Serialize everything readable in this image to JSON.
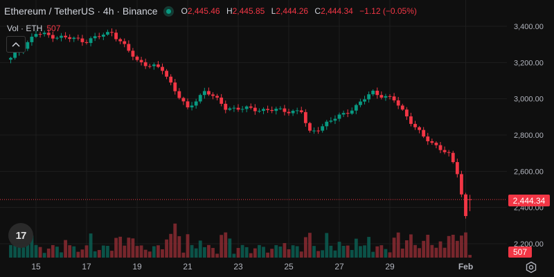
{
  "header": {
    "symbol": "Ethereum / TetherUS · 4h · Binance",
    "open_label": "O",
    "open": "2,445.46",
    "high_label": "H",
    "high": "2,445.85",
    "low_label": "L",
    "low": "2,444.26",
    "close_label": "C",
    "close": "2,444.34",
    "change": "−1.12 (−0.05%)"
  },
  "volume_legend": {
    "label": "Vol · ETH",
    "value": "507"
  },
  "badges": {
    "last_price": "2,444.34",
    "last_volume": "507"
  },
  "logo": {
    "text": "17",
    "icon": "tradingview-logo-icon"
  },
  "colors": {
    "up": "#089981",
    "down": "#f23645",
    "background": "#0f0f0f",
    "grid": "#1e1e1e",
    "text": "#b2b5be"
  },
  "chart_data": {
    "type": "candlestick",
    "symbol": "ETH/USDT",
    "interval": "4h",
    "ylim": [
      2150,
      3450
    ],
    "y_ticks": [
      2200,
      2400,
      2600,
      2800,
      3000,
      3200,
      3400
    ],
    "y_tick_labels": [
      "2,200.00",
      "2,400.00",
      "2,600.00",
      "2,800.00",
      "3,000.00",
      "3,200.00",
      "3,400.00"
    ],
    "x_tick_labels": [
      "15",
      "17",
      "19",
      "21",
      "23",
      "25",
      "27",
      "29",
      "Feb"
    ],
    "last_price": 2444.34,
    "last_volume": 507,
    "key_points": [
      {
        "x": "Jan 14",
        "price": 3220
      },
      {
        "x": "Jan 15",
        "price": 3360
      },
      {
        "x": "Jan 17",
        "price": 3320
      },
      {
        "x": "Jan 18",
        "price": 3370
      },
      {
        "x": "Jan 19",
        "price": 3210
      },
      {
        "x": "Jan 20",
        "price": 3160
      },
      {
        "x": "Jan 21",
        "price": 2940
      },
      {
        "x": "Jan 21.7",
        "price": 3050
      },
      {
        "x": "Jan 22.5",
        "price": 2950
      },
      {
        "x": "Jan 25.5",
        "price": 2930
      },
      {
        "x": "Jan 25.8",
        "price": 2810
      },
      {
        "x": "Jan 27.7",
        "price": 2960
      },
      {
        "x": "Jan 28.3",
        "price": 3040
      },
      {
        "x": "Jan 29.2",
        "price": 2990
      },
      {
        "x": "Jan 30.3",
        "price": 2790
      },
      {
        "x": "Jan 31.3",
        "price": 2700
      },
      {
        "x": "Jan 31.7",
        "price": 2580
      },
      {
        "x": "Feb 1",
        "price": 2350
      },
      {
        "x": "Feb 1.2",
        "price": 2444.34
      }
    ]
  }
}
